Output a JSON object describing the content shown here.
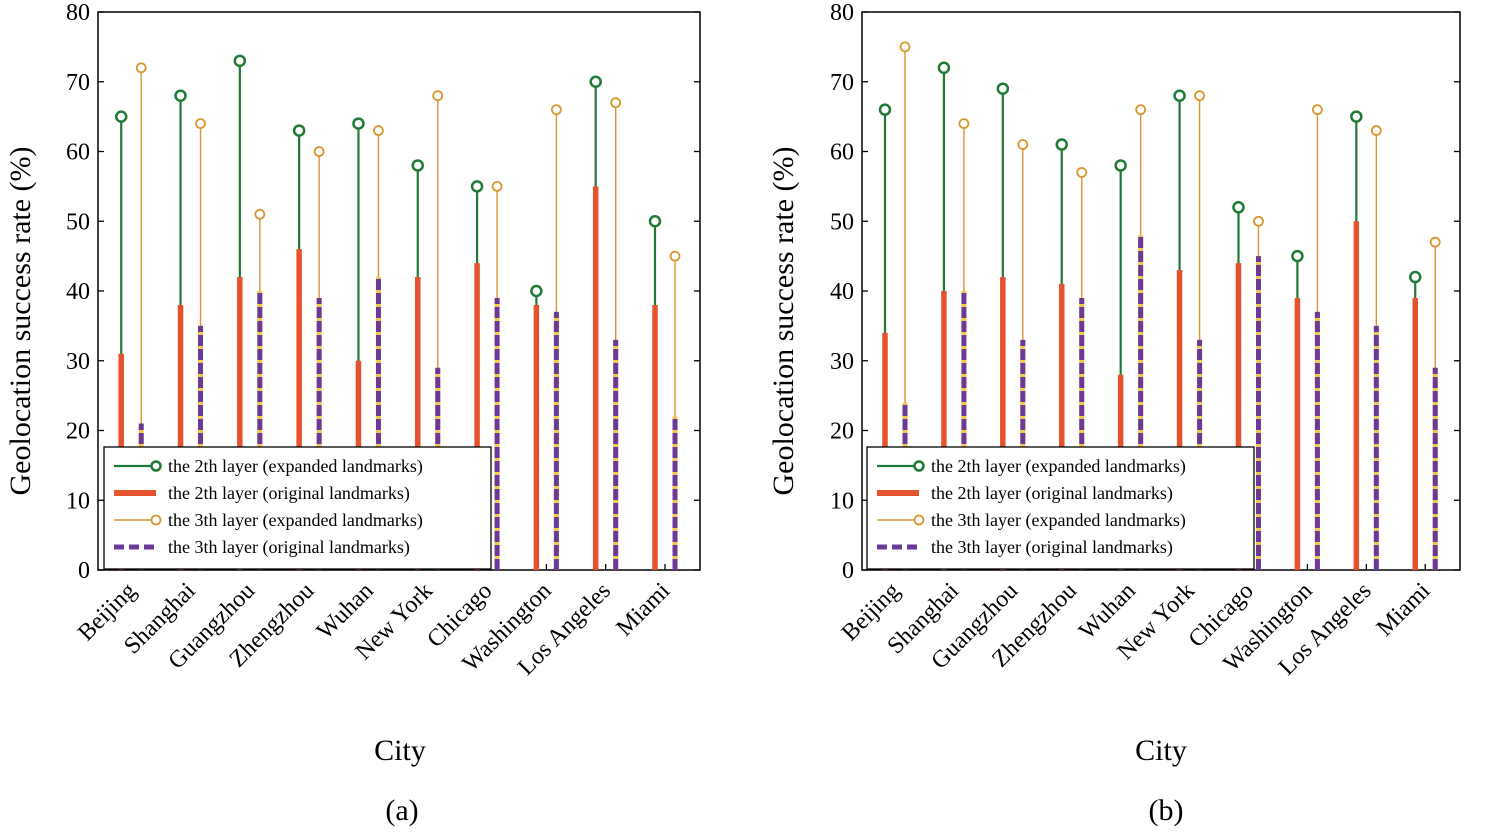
{
  "colors": {
    "exp2": "#1f7a35",
    "orig2": "#e5532e",
    "exp3": "#d9962f",
    "orig3": "#6b3a96",
    "orig3_dash_gap": "#f2c948"
  },
  "chart_data": [
    {
      "type": "stem",
      "caption": "(a)",
      "xlabel": "City",
      "ylabel": "Geolocation success rate (%)",
      "ylim": [
        0,
        80
      ],
      "yticks": [
        0,
        10,
        20,
        30,
        40,
        50,
        60,
        70,
        80
      ],
      "categories": [
        "Beijing",
        "Shanghai",
        "Guangzhou",
        "Zhengzhou",
        "Wuhan",
        "New York",
        "Chicago",
        "Washington",
        "Los Angeles",
        "Miami"
      ],
      "legend": {
        "position": "lower-left"
      },
      "series": [
        {
          "name": "the 2th layer (expanded landmarks)",
          "values": [
            65,
            68,
            73,
            63,
            64,
            58,
            55,
            40,
            70,
            50
          ]
        },
        {
          "name": "the 2th layer (original landmarks)",
          "values": [
            31,
            38,
            42,
            46,
            30,
            42,
            44,
            38,
            55,
            38
          ]
        },
        {
          "name": "the 3th layer (expanded landmarks)",
          "values": [
            72,
            64,
            51,
            60,
            63,
            68,
            55,
            66,
            67,
            45
          ]
        },
        {
          "name": "the 3th layer (original landmarks)",
          "values": [
            21,
            35,
            40,
            39,
            42,
            29,
            39,
            37,
            33,
            22
          ]
        }
      ]
    },
    {
      "type": "stem",
      "caption": "(b)",
      "xlabel": "City",
      "ylabel": "Geolocation success rate (%)",
      "ylim": [
        0,
        80
      ],
      "yticks": [
        0,
        10,
        20,
        30,
        40,
        50,
        60,
        70,
        80
      ],
      "categories": [
        "Beijing",
        "Shanghai",
        "Guangzhou",
        "Zhengzhou",
        "Wuhan",
        "New York",
        "Chicago",
        "Washington",
        "Los Angeles",
        "Miami"
      ],
      "legend": {
        "position": "lower-left"
      },
      "series": [
        {
          "name": "the 2th layer (expanded landmarks)",
          "values": [
            66,
            72,
            69,
            61,
            58,
            68,
            52,
            45,
            65,
            42
          ]
        },
        {
          "name": "the 2th layer (original landmarks)",
          "values": [
            34,
            40,
            42,
            41,
            28,
            43,
            44,
            39,
            50,
            39
          ]
        },
        {
          "name": "the 3th layer (expanded landmarks)",
          "values": [
            75,
            64,
            61,
            57,
            66,
            68,
            50,
            66,
            63,
            47
          ]
        },
        {
          "name": "the 3th layer (original landmarks)",
          "values": [
            24,
            40,
            33,
            39,
            48,
            33,
            45,
            37,
            35,
            29
          ]
        }
      ]
    }
  ]
}
